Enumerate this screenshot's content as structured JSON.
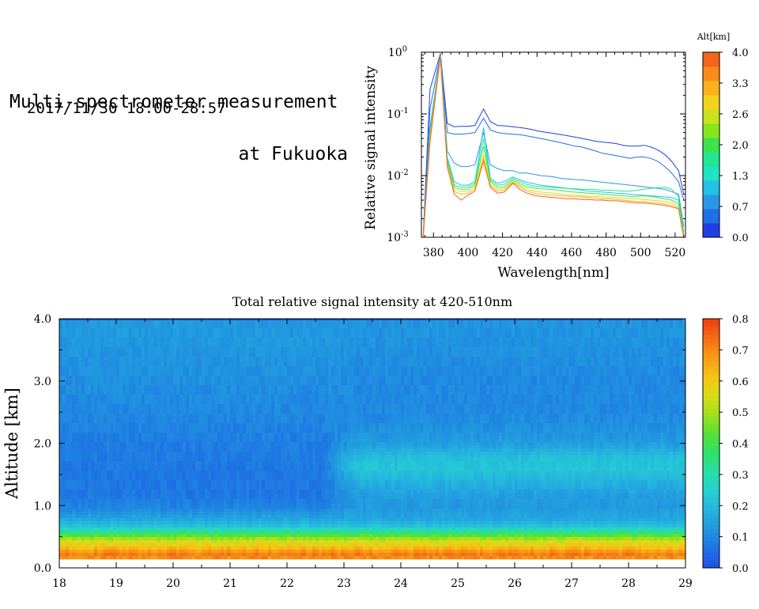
{
  "header": {
    "title_line1": "Multi-spectrometer measurement",
    "title_line2": "at Fukuoka",
    "period": "2017/11/30 18:00-28:57"
  },
  "colors": {
    "altitude_scale": [
      "#1f3fe6",
      "#1f6fe8",
      "#2a97e6",
      "#23c1e3",
      "#1fe3c4",
      "#22e690",
      "#3ee24a",
      "#86e61e",
      "#c8e21e",
      "#f2d21a",
      "#fbb21c",
      "#fb8c1a",
      "#f4641a"
    ],
    "intensity_scale": [
      "#1e50e6",
      "#1e73e4",
      "#2196e0",
      "#24b4de",
      "#26cfd0",
      "#27dfa6",
      "#2ee36a",
      "#55e036",
      "#9ee01c",
      "#d9dd18",
      "#f6c216",
      "#f89a14",
      "#f56d14",
      "#ee3e12"
    ]
  },
  "chart_data": [
    {
      "type": "line",
      "title": "",
      "xlabel": "Wavelength[nm]",
      "ylabel": "Relative signal intensity",
      "xlim": [
        373,
        526
      ],
      "ylim": [
        0.001,
        1
      ],
      "y_scale": "log",
      "x_ticks": [
        380,
        400,
        420,
        440,
        460,
        480,
        500,
        520
      ],
      "y_ticks": [
        {
          "value": 0.001,
          "base": "10",
          "exp": "-3"
        },
        {
          "value": 0.01,
          "base": "10",
          "exp": "-2"
        },
        {
          "value": 0.1,
          "base": "10",
          "exp": "-1"
        },
        {
          "value": 1,
          "base": "10",
          "exp": "0"
        }
      ],
      "colorbar": {
        "label": "Alt[km]",
        "ticks": [
          "0.0",
          "0.7",
          "1.3",
          "2.0",
          "2.6",
          "3.3",
          "4.0"
        ]
      },
      "x": [
        374,
        378,
        384,
        388,
        392,
        396,
        400,
        404,
        409,
        413,
        417,
        421,
        426,
        430,
        434,
        438,
        442,
        446,
        450,
        454,
        458,
        462,
        466,
        470,
        474,
        478,
        482,
        486,
        490,
        494,
        498,
        502,
        506,
        510,
        514,
        518,
        522,
        525
      ],
      "series": [
        {
          "color": "#1f3fe6",
          "values": [
            0.001,
            0.25,
            0.95,
            0.07,
            0.062,
            0.063,
            0.063,
            0.065,
            0.12,
            0.075,
            0.065,
            0.064,
            0.062,
            0.06,
            0.058,
            0.055,
            0.052,
            0.05,
            0.048,
            0.046,
            0.044,
            0.042,
            0.04,
            0.038,
            0.036,
            0.035,
            0.034,
            0.033,
            0.031,
            0.03,
            0.03,
            0.031,
            0.029,
            0.026,
            0.022,
            0.017,
            0.012,
            0.005
          ]
        },
        {
          "color": "#1f6fe8",
          "values": [
            0.001,
            0.12,
            0.9,
            0.05,
            0.047,
            0.047,
            0.048,
            0.05,
            0.085,
            0.055,
            0.05,
            0.048,
            0.047,
            0.046,
            0.044,
            0.042,
            0.04,
            0.038,
            0.036,
            0.034,
            0.032,
            0.03,
            0.029,
            0.027,
            0.025,
            0.023,
            0.022,
            0.021,
            0.02,
            0.019,
            0.02,
            0.02,
            0.019,
            0.017,
            0.014,
            0.011,
            0.008,
            0.004
          ]
        },
        {
          "color": "#2a97e6",
          "values": [
            0.001,
            0.06,
            0.88,
            0.025,
            0.016,
            0.014,
            0.014,
            0.015,
            0.05,
            0.015,
            0.013,
            0.012,
            0.012,
            0.011,
            0.011,
            0.0105,
            0.01,
            0.0098,
            0.0095,
            0.009,
            0.0088,
            0.0086,
            0.0085,
            0.0083,
            0.008,
            0.0078,
            0.0076,
            0.0074,
            0.0072,
            0.007,
            0.0068,
            0.0066,
            0.0064,
            0.0062,
            0.006,
            0.0055,
            0.005,
            0.0015
          ]
        },
        {
          "color": "#23c1e3",
          "values": [
            0.001,
            0.05,
            0.9,
            0.02,
            0.008,
            0.007,
            0.007,
            0.008,
            0.06,
            0.009,
            0.0075,
            0.008,
            0.0095,
            0.0085,
            0.0078,
            0.0074,
            0.007,
            0.0068,
            0.0066,
            0.0064,
            0.0062,
            0.006,
            0.0058,
            0.0056,
            0.0055,
            0.0054,
            0.0053,
            0.0052,
            0.0051,
            0.005,
            0.0049,
            0.0048,
            0.0047,
            0.0046,
            0.0045,
            0.0044,
            0.004,
            0.0012
          ]
        },
        {
          "color": "#22e690",
          "values": [
            0.001,
            0.045,
            0.88,
            0.018,
            0.007,
            0.0065,
            0.0065,
            0.0075,
            0.04,
            0.0085,
            0.007,
            0.0072,
            0.009,
            0.008,
            0.0072,
            0.0068,
            0.0066,
            0.0065,
            0.0064,
            0.0063,
            0.0062,
            0.0061,
            0.006,
            0.006,
            0.0059,
            0.0058,
            0.0058,
            0.0057,
            0.0056,
            0.0056,
            0.0058,
            0.006,
            0.0062,
            0.0064,
            0.0065,
            0.006,
            0.0045,
            0.0012
          ]
        },
        {
          "color": "#3ee24a",
          "values": [
            0.001,
            0.045,
            0.87,
            0.017,
            0.0065,
            0.006,
            0.006,
            0.007,
            0.03,
            0.008,
            0.0065,
            0.0066,
            0.0085,
            0.0074,
            0.0066,
            0.0063,
            0.0061,
            0.006,
            0.0059,
            0.0057,
            0.0055,
            0.0054,
            0.0053,
            0.0052,
            0.0051,
            0.005,
            0.0049,
            0.0048,
            0.0047,
            0.0046,
            0.0046,
            0.0047,
            0.0046,
            0.0044,
            0.0042,
            0.004,
            0.0035,
            0.0011
          ]
        },
        {
          "color": "#c8e21e",
          "values": [
            0.001,
            0.04,
            0.86,
            0.016,
            0.006,
            0.0055,
            0.0056,
            0.0065,
            0.022,
            0.0072,
            0.006,
            0.0062,
            0.008,
            0.007,
            0.006,
            0.0056,
            0.0054,
            0.0053,
            0.0052,
            0.005,
            0.0049,
            0.0048,
            0.0047,
            0.0046,
            0.0046,
            0.0045,
            0.0044,
            0.0044,
            0.0043,
            0.0042,
            0.0042,
            0.0041,
            0.004,
            0.0039,
            0.0038,
            0.0036,
            0.0032,
            0.001
          ]
        },
        {
          "color": "#fbb21c",
          "values": [
            0.001,
            0.04,
            0.85,
            0.015,
            0.0055,
            0.005,
            0.0052,
            0.006,
            0.019,
            0.0068,
            0.0056,
            0.0058,
            0.0078,
            0.0066,
            0.0056,
            0.0052,
            0.005,
            0.0049,
            0.0048,
            0.0047,
            0.0046,
            0.0045,
            0.0045,
            0.0044,
            0.0043,
            0.0042,
            0.0042,
            0.0041,
            0.004,
            0.0039,
            0.0038,
            0.0038,
            0.0037,
            0.0036,
            0.0035,
            0.0033,
            0.003,
            0.001
          ]
        },
        {
          "color": "#f4641a",
          "values": [
            0.001,
            0.035,
            0.84,
            0.014,
            0.005,
            0.004,
            0.0048,
            0.0056,
            0.017,
            0.0064,
            0.0052,
            0.0054,
            0.0075,
            0.006,
            0.0052,
            0.0048,
            0.0046,
            0.0045,
            0.0044,
            0.0043,
            0.0042,
            0.0042,
            0.0041,
            0.0041,
            0.004,
            0.004,
            0.0039,
            0.0039,
            0.0038,
            0.0037,
            0.0036,
            0.0036,
            0.0035,
            0.0034,
            0.0033,
            0.0031,
            0.0029,
            0.001
          ]
        }
      ]
    },
    {
      "type": "heatmap",
      "title": "Total relative signal intensity at 420-510nm",
      "xlabel": "",
      "ylabel": "Altitude [km]",
      "xlim": [
        18,
        29
      ],
      "ylim": [
        0,
        4
      ],
      "data_x_range": [
        18,
        28.95
      ],
      "data_y_range": [
        0.15,
        4.0
      ],
      "x_ticks": [
        "18",
        "19",
        "20",
        "21",
        "22",
        "23",
        "24",
        "25",
        "26",
        "27",
        "28",
        "29"
      ],
      "y_ticks": [
        "0.0",
        "1.0",
        "2.0",
        "3.0",
        "4.0"
      ],
      "colorbar": {
        "range": [
          0,
          0.8
        ],
        "ticks": [
          "0.0",
          "0.1",
          "0.2",
          "0.3",
          "0.4",
          "0.5",
          "0.6",
          "0.7",
          "0.8"
        ]
      },
      "altitude_profile": {
        "altitude_km": [
          0.15,
          0.25,
          0.35,
          0.45,
          0.55,
          0.6,
          0.65,
          0.7,
          0.8,
          1.0,
          1.2,
          1.4,
          1.6,
          1.8,
          2.0,
          2.3,
          2.6,
          3.0,
          3.4,
          3.8,
          4.0
        ],
        "before_23h": [
          0.68,
          0.72,
          0.62,
          0.55,
          0.42,
          0.34,
          0.26,
          0.21,
          0.16,
          0.09,
          0.07,
          0.07,
          0.07,
          0.08,
          0.08,
          0.09,
          0.1,
          0.11,
          0.12,
          0.13,
          0.13
        ],
        "after_23h": [
          0.68,
          0.72,
          0.62,
          0.55,
          0.42,
          0.34,
          0.26,
          0.21,
          0.16,
          0.13,
          0.14,
          0.18,
          0.22,
          0.21,
          0.14,
          0.11,
          0.1,
          0.1,
          0.11,
          0.12,
          0.12
        ]
      }
    }
  ]
}
